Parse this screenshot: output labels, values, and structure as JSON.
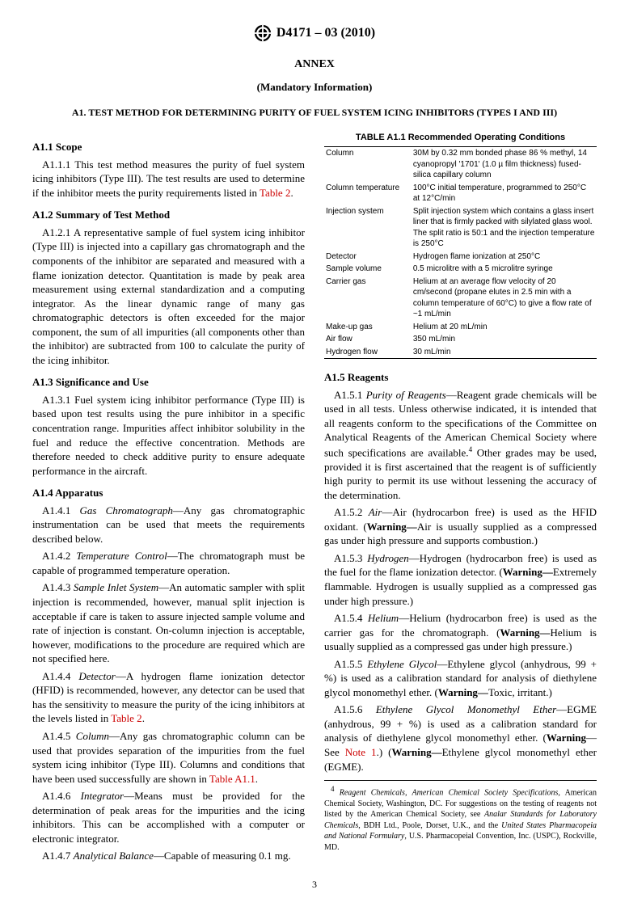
{
  "designation": "D4171 – 03 (2010)",
  "annex": "ANNEX",
  "mandatory": "(Mandatory Information)",
  "a1_title": "A1.   TEST METHOD FOR DETERMINING PURITY OF FUEL SYSTEM ICING INHIBITORS (TYPES I AND III)",
  "page_number": "3",
  "headings": {
    "scope": "A1.1 Scope",
    "summary": "A1.2 Summary of Test Method",
    "significance": "A1.3 Significance and Use",
    "apparatus": "A1.4 Apparatus",
    "reagents": "A1.5 Reagents"
  },
  "paragraphs": {
    "a111_a": "A1.1.1 This test method measures the purity of fuel system icing inhibitors (Type III). The test results are used to determine if the inhibitor meets the purity requirements listed in ",
    "a111_link": "Table 2",
    "a111_b": ".",
    "a121": "A1.2.1 A representative sample of fuel system icing inhibitor (Type III) is injected into a capillary gas chromatograph and the components of the inhibitor are separated and measured with a flame ionization detector. Quantitation is made by peak area measurement using external standardization and a computing integrator. As the linear dynamic range of many gas chromatographic detectors is often exceeded for the major component, the sum of all impurities (all components other than the inhibitor) are subtracted from 100 to calculate the purity of the icing inhibitor.",
    "a131": "A1.3.1 Fuel system icing inhibitor performance (Type III) is based upon test results using the pure inhibitor in a specific concentration range. Impurities affect inhibitor solubility in the fuel and reduce the effective concentration. Methods are therefore needed to check additive purity to ensure adequate performance in the aircraft.",
    "a141_label": "A1.4.1 ",
    "a141_ital": "Gas Chromatograph",
    "a141_body": "—Any gas chromatographic instrumentation can be used that meets the requirements described below.",
    "a142_label": "A1.4.2 ",
    "a142_ital": "Temperature Control",
    "a142_body": "—The chromatograph must be capable of programmed temperature operation.",
    "a143_label": "A1.4.3 ",
    "a143_ital": "Sample Inlet System",
    "a143_body": "—An automatic sampler with split injection is recommended, however, manual split injection is acceptable if care is taken to assure injected sample volume and rate of injection is constant. On-column injection is acceptable, however, modifications to the procedure are required which are not specified here.",
    "a144_label": "A1.4.4 ",
    "a144_ital": "Detector",
    "a144_body_a": "—A hydrogen flame ionization detector (HFID) is recommended, however, any detector can be used that has the sensitivity to measure the purity of the icing inhibitors at the levels listed in ",
    "a144_link": "Table 2",
    "a144_body_b": ".",
    "a145_label": "A1.4.5 ",
    "a145_ital": "Column",
    "a145_body_a": "—Any gas chromatographic column can be used that provides separation of the impurities from the fuel system icing inhibitor (Type III). Columns and conditions that have been used successfully are shown in ",
    "a145_link": "Table A1.1",
    "a145_body_b": ".",
    "a146_label": "A1.4.6 ",
    "a146_ital": "Integrator",
    "a146_body": "—Means must be provided for the determination of peak areas for the impurities and the icing inhibitors. This can be accomplished with a computer or electronic integrator.",
    "a147_label": "A1.4.7 ",
    "a147_ital": "Analytical Balance",
    "a147_body": "—Capable of measuring 0.1 mg.",
    "a151_label": "A1.5.1 ",
    "a151_ital": "Purity of Reagents",
    "a151_body_a": "—Reagent grade chemicals will be used in all tests. Unless otherwise indicated, it is intended that all reagents conform to the specifications of the Committee on Analytical Reagents of the American Chemical Society where such specifications are available.",
    "a151_sup": "4",
    "a151_body_b": " Other grades may be used, provided it is first ascertained that the reagent is of sufficiently high purity to permit its use without lessening the accuracy of the determination.",
    "a152_label": "A1.5.2 ",
    "a152_ital": "Air",
    "a152_body": "—Air (hydrocarbon free) is used as the HFID oxidant. (",
    "a152_warn": "Warning—",
    "a152_body2": "Air is usually supplied as a compressed gas under high pressure and supports combustion.)",
    "a153_label": "A1.5.3 ",
    "a153_ital": "Hydrogen",
    "a153_body": "—Hydrogen (hydrocarbon free) is used as the fuel for the flame ionization detector. (",
    "a153_warn": "Warning—",
    "a153_body2": "Extremely flammable. Hydrogen is usually supplied as a compressed gas under high pressure.)",
    "a154_label": "A1.5.4 ",
    "a154_ital": "Helium",
    "a154_body": "—Helium (hydrocarbon free) is used as the carrier gas for the chromatograph. (",
    "a154_warn": "Warning—",
    "a154_body2": "Helium is usually supplied as a compressed gas under high pressure.)",
    "a155_label": "A1.5.5 ",
    "a155_ital": "Ethylene Glycol",
    "a155_body": "—Ethylene glycol (anhydrous, 99 + %) is used as a calibration standard for analysis of diethylene glycol monomethyl ether. (",
    "a155_warn": "Warning—",
    "a155_body2": "Toxic, irritant.)",
    "a156_label": "A1.5.6 ",
    "a156_ital": "Ethylene Glycol Monomethyl Ether",
    "a156_body": "—EGME (anhydrous, 99 + %) is used as a calibration standard for analysis of diethylene glycol monomethyl ether. (",
    "a156_warn": "Warning",
    "a156_see": "—See ",
    "a156_link": "Note 1",
    "a156_body2": ".) (",
    "a156_warn2": "Warning—",
    "a156_body3": "Ethylene glycol monomethyl ether (EGME)."
  },
  "table": {
    "title": "TABLE A1.1  Recommended Operating Conditions",
    "rows": [
      [
        "Column",
        "30M by 0.32 mm bonded phase 86 % methyl, 14 cyanopropyl '1701' (1.0 µ film thickness) fused-silica capillary column"
      ],
      [
        "Column temperature",
        "100°C initial temperature, programmed to 250°C at 12°C/min"
      ],
      [
        "Injection system",
        "Split injection system which contains a glass insert liner that is firmly packed with silylated glass wool. The split ratio is 50:1 and the injection temperature is 250°C"
      ],
      [
        "Detector",
        "Hydrogen flame ionization at 250°C"
      ],
      [
        "Sample volume",
        "0.5 microlitre with a 5 microlitre syringe"
      ],
      [
        "Carrier gas",
        "Helium at an average flow velocity of 20 cm/second (propane elutes in 2.5 min with a column temperature of 60°C) to give a flow rate of ~1 mL/min"
      ],
      [
        "Make-up gas",
        "Helium at 20 mL/min"
      ],
      [
        "Air flow",
        "350 mL/min"
      ],
      [
        "Hydrogen flow",
        "30 mL/min"
      ]
    ]
  },
  "footnote": {
    "marker": "4",
    "text_a": " Reagent Chemicals, American Chemical Society Specifications",
    "text_b": ", American Chemical Society, Washington, DC. For suggestions on the testing of reagents not listed by the American Chemical Society, see ",
    "text_c": "Analar Standards for Laboratory Chemicals",
    "text_d": ", BDH Ltd., Poole, Dorset, U.K., and the ",
    "text_e": "United States Pharmacopeia and National Formulary",
    "text_f": ", U.S. Pharmacopeial Convention, Inc. (USPC), Rockville, MD."
  }
}
